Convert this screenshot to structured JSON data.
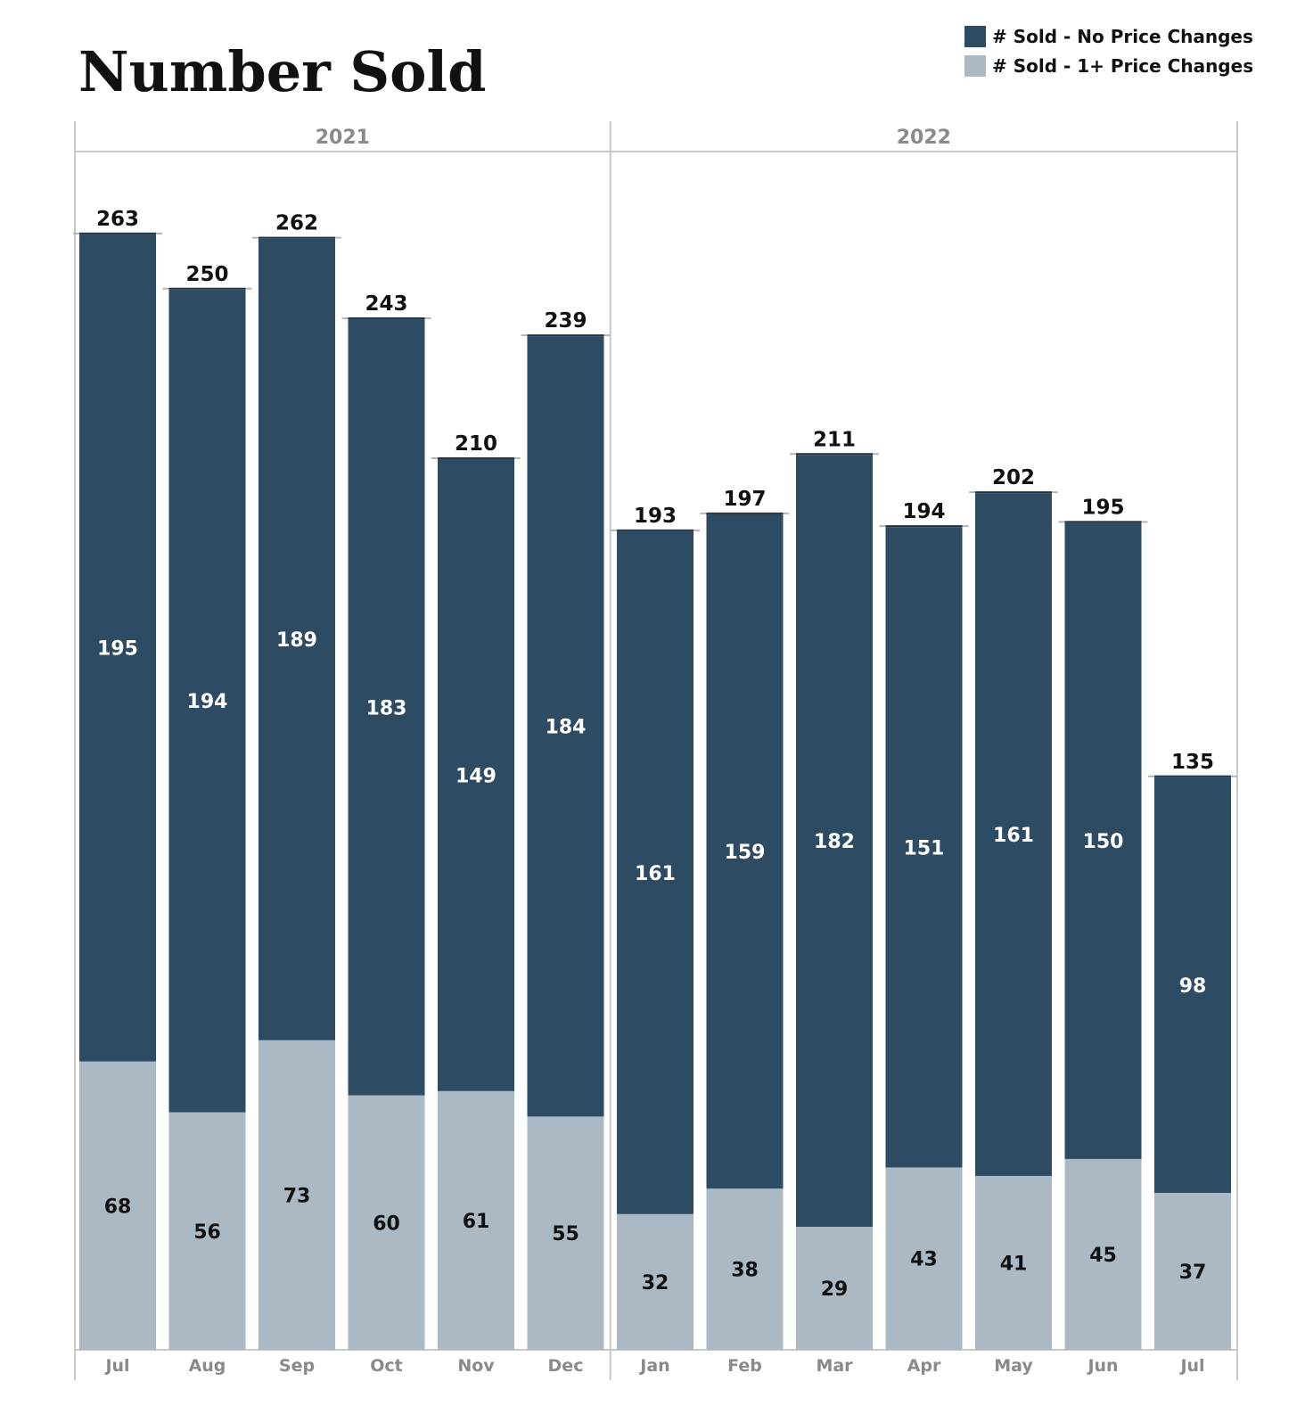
{
  "colors": {
    "no_change": "#2d4b63",
    "price_change": "#abb9c4",
    "frame": "#c8c8c8",
    "axis_text": "#8a8a8a"
  },
  "chart_data": {
    "type": "bar",
    "stacked": true,
    "title": "Number Sold",
    "legend": {
      "placement": "top-right",
      "entries": [
        "# Sold - No Price Changes",
        "# Sold - 1+ Price Changes"
      ]
    },
    "groups": [
      {
        "label": "2021",
        "categories": [
          "Jul",
          "Aug",
          "Sep",
          "Oct",
          "Nov",
          "Dec"
        ]
      },
      {
        "label": "2022",
        "categories": [
          "Jan",
          "Feb",
          "Mar",
          "Apr",
          "May",
          "Jun",
          "Jul"
        ]
      }
    ],
    "categories": [
      "Jul",
      "Aug",
      "Sep",
      "Oct",
      "Nov",
      "Dec",
      "Jan",
      "Feb",
      "Mar",
      "Apr",
      "May",
      "Jun",
      "Jul"
    ],
    "series": [
      {
        "name": "# Sold - 1+ Price Changes",
        "values": [
          68,
          56,
          73,
          60,
          61,
          55,
          32,
          38,
          29,
          43,
          41,
          45,
          37
        ]
      },
      {
        "name": "# Sold - No Price Changes",
        "values": [
          195,
          194,
          189,
          183,
          149,
          184,
          161,
          159,
          182,
          151,
          161,
          150,
          98
        ]
      }
    ],
    "totals": [
      263,
      250,
      262,
      243,
      210,
      239,
      193,
      197,
      211,
      194,
      202,
      195,
      135
    ],
    "ylim": [
      0,
      285
    ],
    "grid": false
  }
}
